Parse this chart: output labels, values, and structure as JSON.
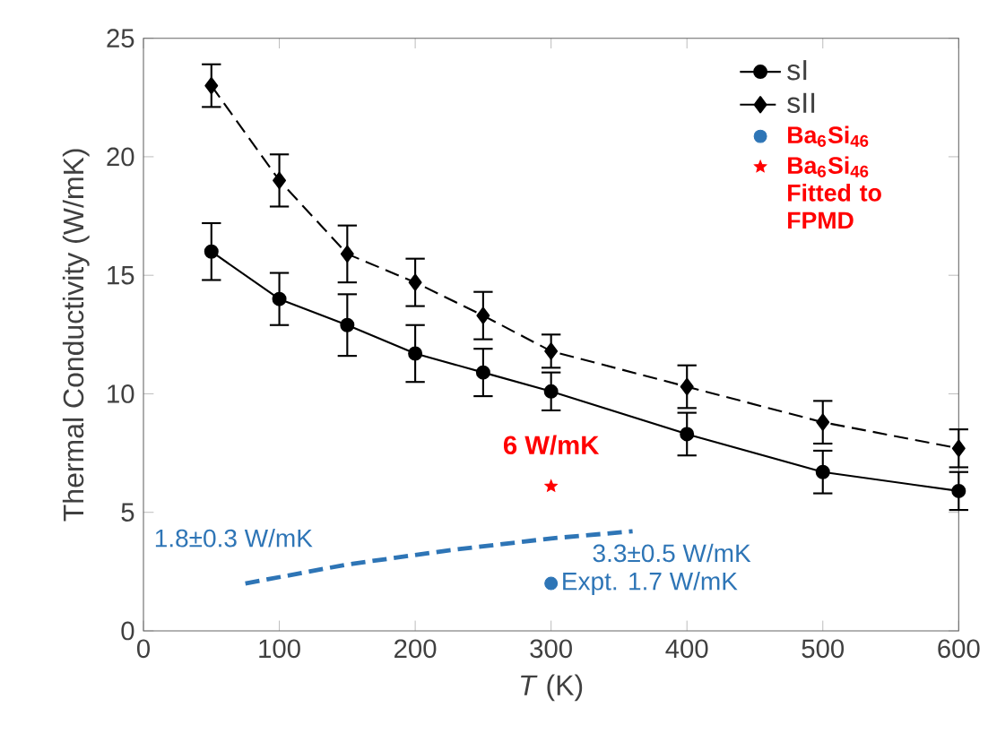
{
  "chart_data": {
    "type": "line",
    "xlabel": "*T* (K)",
    "ylabel": "Thermal Conductivity (W/mK)",
    "xlim": [
      0,
      600
    ],
    "xticks": [
      0,
      100,
      200,
      300,
      400,
      500,
      600
    ],
    "ylim": [
      0,
      25
    ],
    "yticks": [
      0,
      5,
      10,
      15,
      20,
      25
    ],
    "grid": false,
    "legend": "top right",
    "series": [
      {
        "name": "sI",
        "color": "#000000",
        "marker": "circle",
        "line_style": "solid",
        "x": [
          50,
          100,
          150,
          200,
          250,
          300,
          400,
          500,
          600
        ],
        "values": [
          16,
          14,
          12.9,
          11.7,
          10.9,
          10.1,
          8.3,
          6.7,
          5.9
        ],
        "errors": [
          1.2,
          1.1,
          1.3,
          1.2,
          1.0,
          0.8,
          0.9,
          0.9,
          0.8
        ]
      },
      {
        "name": "sII",
        "color": "#000000",
        "marker": "diamond",
        "line_style": "dashed",
        "x": [
          50,
          100,
          150,
          200,
          250,
          300,
          400,
          500,
          600
        ],
        "values": [
          23,
          19,
          15.9,
          14.7,
          13.3,
          11.8,
          10.3,
          8.8,
          7.7
        ],
        "errors": [
          0.9,
          1.1,
          1.2,
          1.0,
          1.0,
          0.7,
          0.9,
          0.9,
          0.8
        ]
      },
      {
        "name": "Ba$_{6}$Si$_{46}$",
        "type": "scatter",
        "color": "#2e75b6",
        "marker": "circle",
        "x": [
          300
        ],
        "values": [
          2.0
        ]
      },
      {
        "name": "Ba$_{6}$Si$_{46}$ Fitted to FPMD",
        "type": "scatter",
        "color": "#ff0000",
        "marker": "star",
        "x": [
          300
        ],
        "values": [
          6.1
        ]
      },
      {
        "color": "#2e75b6",
        "marker": "none",
        "line_style": "dashed",
        "x": [
          75,
          150,
          225,
          300,
          360
        ],
        "values": [
          2.0,
          2.8,
          3.4,
          3.9,
          4.2
        ]
      }
    ],
    "annotations": [
      "6 W/mK",
      "1.8±0.3 W/mK",
      "3.3±0.5 W/mK",
      "Expt. 1.7 W/mK"
    ]
  }
}
